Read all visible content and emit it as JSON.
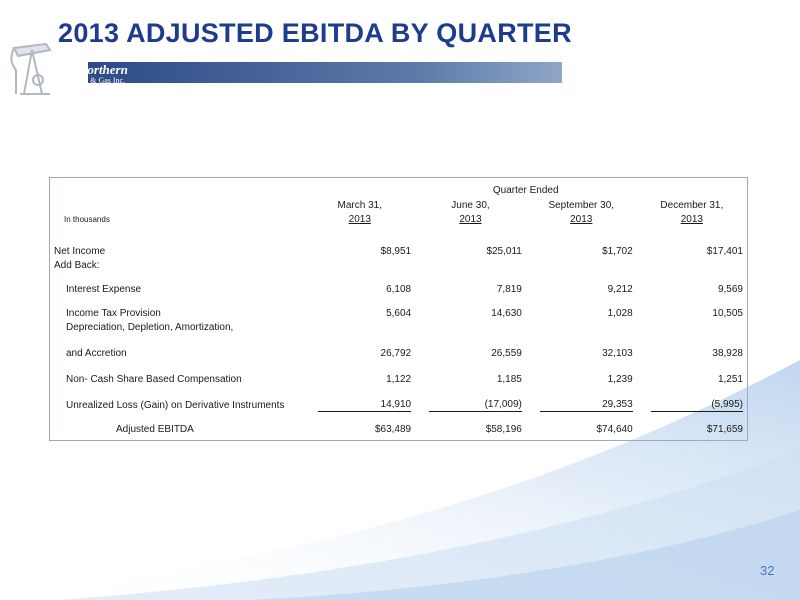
{
  "slide": {
    "title": "2013 ADJUSTED EBITDA BY QUARTER",
    "logo": {
      "name": "Northern",
      "sub": "Oil & Gas Inc."
    },
    "page_number": "32",
    "colors": {
      "title": "#1e3c8c",
      "band": "#2c4a86",
      "accent": "#4a74b8"
    }
  },
  "table": {
    "group_header": "Quarter Ended",
    "units_label": "In thousands",
    "columns": [
      {
        "line1": "March 31,",
        "line2": "2013"
      },
      {
        "line1": "June 30,",
        "line2": "2013"
      },
      {
        "line1": "September 30,",
        "line2": "2013"
      },
      {
        "line1": "December 31,",
        "line2": "2013"
      }
    ],
    "rows": [
      {
        "label": "Net Income",
        "values": [
          "$8,951",
          "$25,011",
          "$1,702",
          "$17,401"
        ]
      },
      {
        "label": "Add Back:",
        "values": []
      },
      {
        "label": "Interest Expense",
        "values": [
          "6,108",
          "7,819",
          "9,212",
          "9,569"
        ]
      },
      {
        "label": "Income Tax Provision",
        "values": [
          "5,604",
          "14,630",
          "1,028",
          "10,505"
        ]
      },
      {
        "label": "Depreciation, Depletion, Amortization,",
        "values": []
      },
      {
        "label": "and Accretion",
        "values": [
          "26,792",
          "26,559",
          "32,103",
          "38,928"
        ]
      },
      {
        "label": "Non- Cash Share Based Compensation",
        "values": [
          "1,122",
          "1,185",
          "1,239",
          "1,251"
        ]
      },
      {
        "label": "Unrealized Loss (Gain) on Derivative Instruments",
        "values": [
          "14,910",
          "(17,009)",
          "29,353",
          "(5,995)"
        ]
      },
      {
        "label": "Adjusted EBITDA",
        "values": [
          "$63,489",
          "$58,196",
          "$74,640",
          "$71,659"
        ]
      }
    ]
  }
}
